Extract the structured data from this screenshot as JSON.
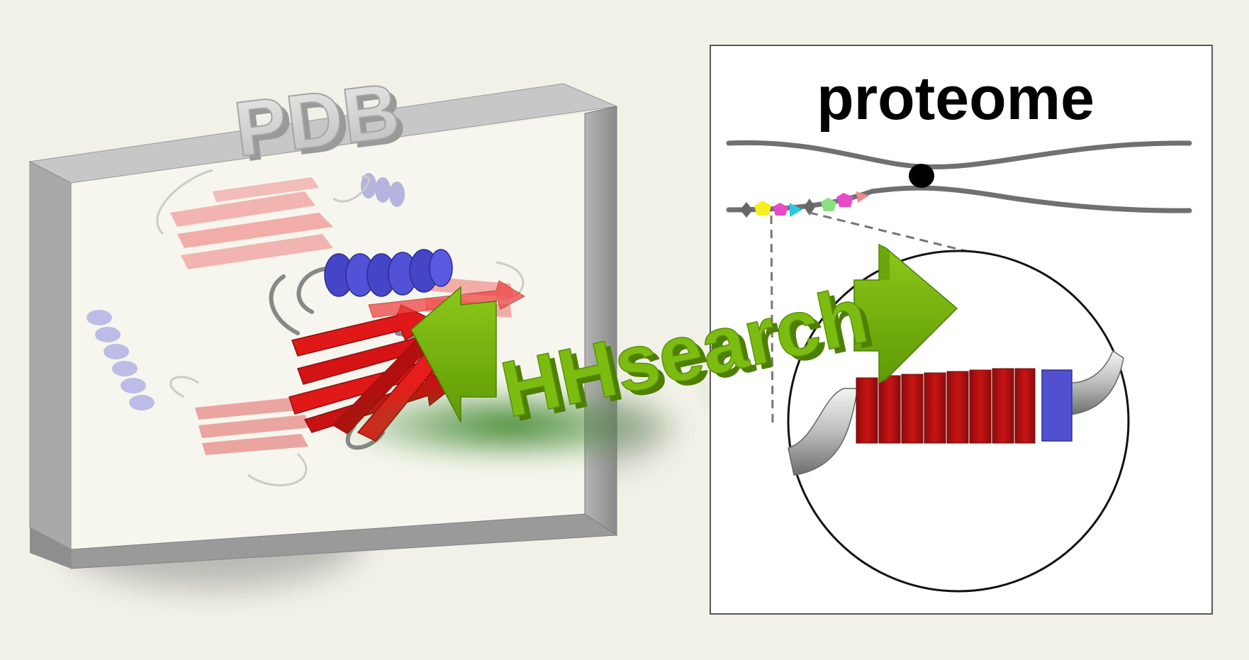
{
  "pdb_label": "PDB",
  "proteome_label": "proteome",
  "hhsearch_label": "HHsearch",
  "colors": {
    "background": "#f1f1e8",
    "frame": "#8f8f8f",
    "strand": "#dd1515",
    "helix": "#5555cc",
    "arrow": "#78b40a",
    "domain_red": "#b80f0f",
    "domain_blue": "#5050d0"
  },
  "icons": [
    "pdb-frame-icon",
    "protein-structure-icon",
    "bidirectional-arrow-icon",
    "chromosome-icon",
    "magnify-circle-icon",
    "domain-bar-icon"
  ]
}
